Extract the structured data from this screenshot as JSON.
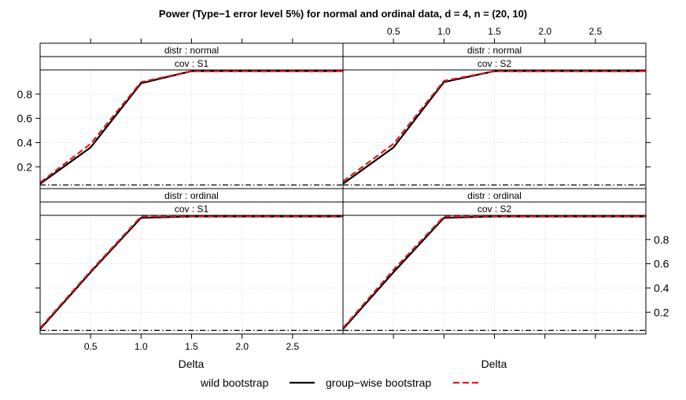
{
  "chart_data": {
    "type": "line",
    "title": "Power (Type−1 error level 5%) for normal and ordinal data, d = 4, n = (20, 10)",
    "xlabel": "Delta",
    "x": [
      0,
      0.5,
      1.0,
      1.5,
      2.0,
      2.5,
      3.0
    ],
    "xlim": [
      0,
      3.0
    ],
    "ylim": [
      0.02,
      1.0
    ],
    "x_ticks": [
      "0.5",
      "1.0",
      "1.5",
      "2.0",
      "2.5"
    ],
    "y_ticks": [
      "0.2",
      "0.4",
      "0.6",
      "0.8"
    ],
    "alpha_level": 0.05,
    "grid": true,
    "legend_position": "bottom",
    "legend": [
      {
        "name": "wild bootstrap",
        "color": "#000000",
        "style": "solid"
      },
      {
        "name": "group−wise bootstrap",
        "color": "#e31a1c",
        "style": "dashed"
      }
    ],
    "panels": [
      {
        "strip_distr": "distr : normal",
        "strip_cov": "cov : S1",
        "series": [
          {
            "name": "wild bootstrap",
            "values": [
              0.06,
              0.36,
              0.89,
              0.99,
              0.99,
              0.99,
              0.99
            ]
          },
          {
            "name": "group−wise bootstrap",
            "values": [
              0.07,
              0.39,
              0.9,
              0.99,
              0.99,
              0.99,
              0.99
            ]
          }
        ]
      },
      {
        "strip_distr": "distr : normal",
        "strip_cov": "cov : S2",
        "series": [
          {
            "name": "wild bootstrap",
            "values": [
              0.06,
              0.36,
              0.9,
              0.99,
              0.99,
              0.99,
              0.99
            ]
          },
          {
            "name": "group−wise bootstrap",
            "values": [
              0.08,
              0.39,
              0.91,
              0.99,
              0.99,
              0.99,
              0.99
            ]
          }
        ]
      },
      {
        "strip_distr": "distr : ordinal",
        "strip_cov": "cov : S1",
        "series": [
          {
            "name": "wild bootstrap",
            "values": [
              0.06,
              0.53,
              0.98,
              0.99,
              0.99,
              0.99,
              0.99
            ]
          },
          {
            "name": "group−wise bootstrap",
            "values": [
              0.07,
              0.54,
              0.99,
              0.99,
              0.99,
              0.99,
              0.99
            ]
          }
        ]
      },
      {
        "strip_distr": "distr : ordinal",
        "strip_cov": "cov : S2",
        "series": [
          {
            "name": "wild bootstrap",
            "values": [
              0.06,
              0.53,
              0.98,
              0.99,
              0.99,
              0.99,
              0.99
            ]
          },
          {
            "name": "group−wise bootstrap",
            "values": [
              0.07,
              0.55,
              0.99,
              0.99,
              0.99,
              0.99,
              0.99
            ]
          }
        ]
      }
    ]
  }
}
